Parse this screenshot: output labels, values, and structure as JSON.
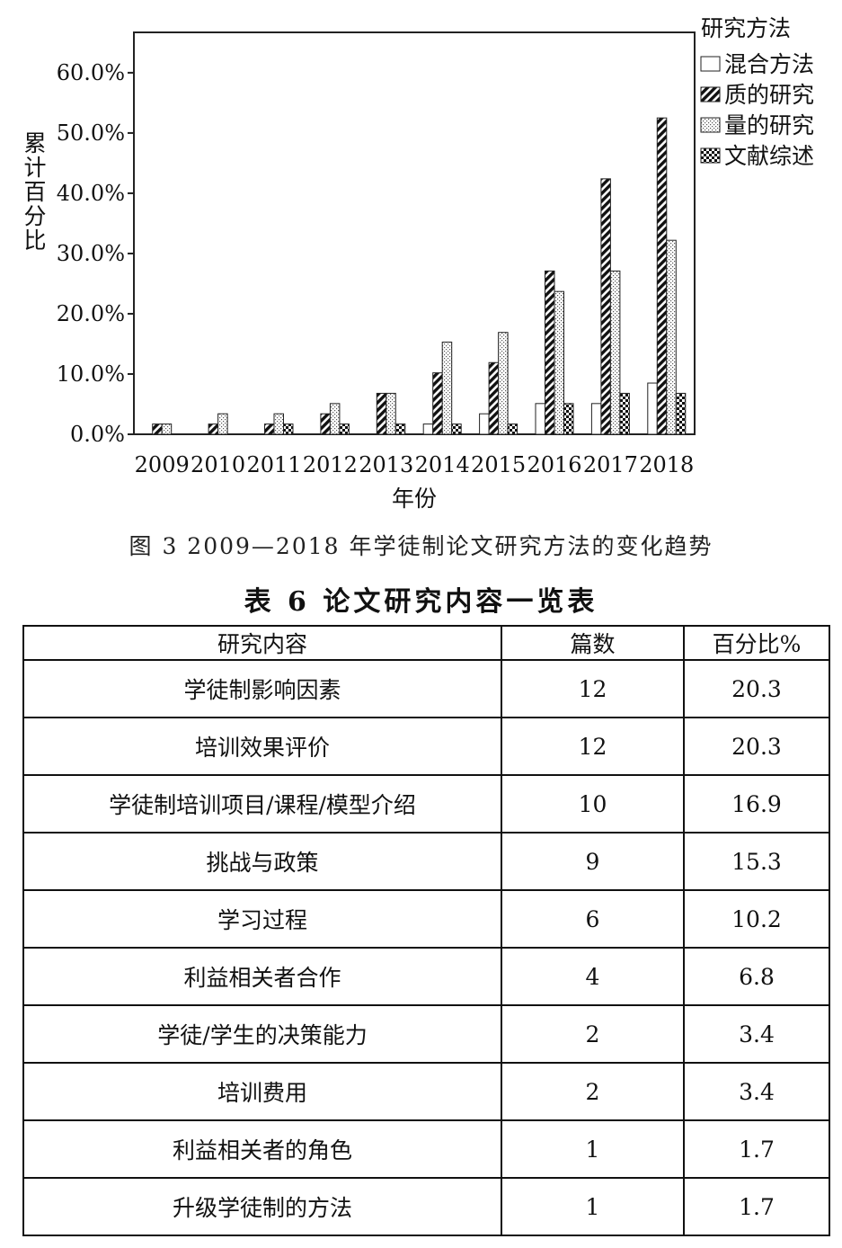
{
  "figure": {
    "caption": "图 3   2009—2018 年学徒制论文研究方法的变化趋势"
  },
  "chart_data": {
    "type": "bar",
    "title": "",
    "xlabel": "年份",
    "ylabel": "累计百分比",
    "ylim": [
      0,
      66.7
    ],
    "yticks": [
      "0.0%",
      "10.0%",
      "20.0%",
      "30.0%",
      "40.0%",
      "50.0%",
      "60.0%"
    ],
    "grid": false,
    "legend_title": "研究方法",
    "legend_position": "top-right",
    "categories": [
      "2009",
      "2010",
      "2011",
      "2012",
      "2013",
      "2014",
      "2015",
      "2016",
      "2017",
      "2018"
    ],
    "series": [
      {
        "name": "混合方法",
        "values": [
          0,
          0,
          0,
          0,
          0,
          1.7,
          3.4,
          5.1,
          5.1,
          8.5
        ]
      },
      {
        "name": "质的研究",
        "values": [
          1.7,
          1.7,
          1.7,
          3.4,
          6.8,
          10.2,
          11.9,
          27.1,
          42.4,
          52.5
        ]
      },
      {
        "name": "量的研究",
        "values": [
          1.7,
          3.4,
          3.4,
          5.1,
          6.8,
          15.3,
          16.9,
          23.7,
          27.1,
          32.2
        ]
      },
      {
        "name": "文献综述",
        "values": [
          0,
          0,
          1.7,
          1.7,
          1.7,
          1.7,
          1.7,
          5.1,
          6.8,
          6.8
        ]
      }
    ]
  },
  "table": {
    "title": "表 6   论文研究内容一览表",
    "headers": [
      "研究内容",
      "篇数",
      "百分比%"
    ],
    "rows": [
      [
        "学徒制影响因素",
        "12",
        "20.3"
      ],
      [
        "培训效果评价",
        "12",
        "20.3"
      ],
      [
        "学徒制培训项目/课程/模型介绍",
        "10",
        "16.9"
      ],
      [
        "挑战与政策",
        "9",
        "15.3"
      ],
      [
        "学习过程",
        "6",
        "10.2"
      ],
      [
        "利益相关者合作",
        "4",
        "6.8"
      ],
      [
        "学徒/学生的决策能力",
        "2",
        "3.4"
      ],
      [
        "培训费用",
        "2",
        "3.4"
      ],
      [
        "利益相关者的角色",
        "1",
        "1.7"
      ],
      [
        "升级学徒制的方法",
        "1",
        "1.7"
      ]
    ]
  }
}
